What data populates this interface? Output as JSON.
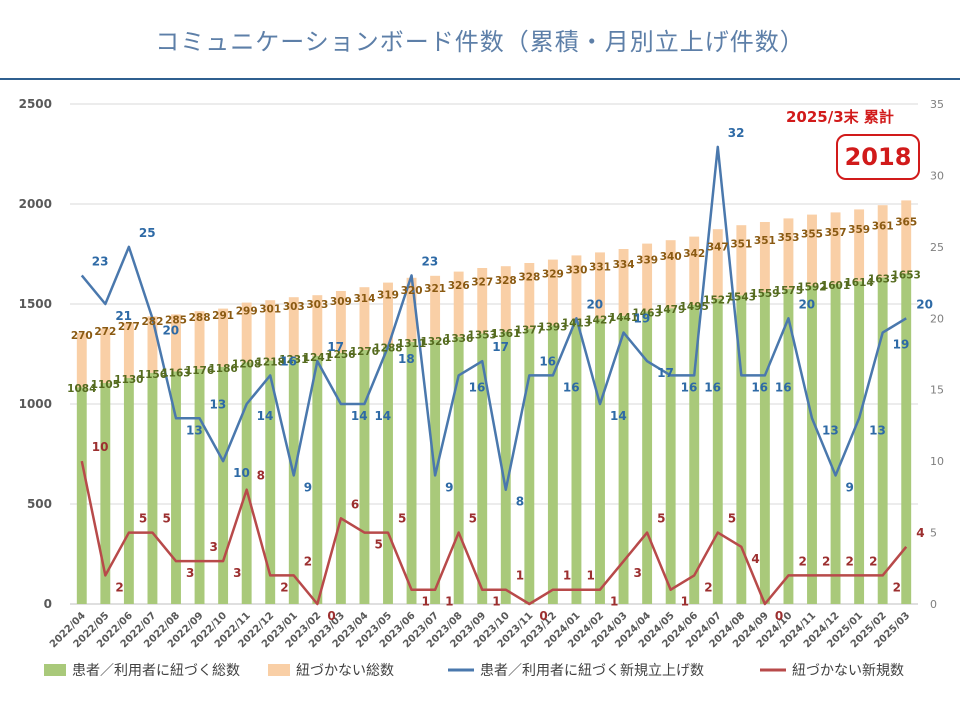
{
  "page": {
    "title": "コミュニケーションボード件数（累積・月別立上げ件数）",
    "total_label": "2025/3末 累計",
    "total_value": "2018"
  },
  "chart_data": {
    "type": "bar",
    "stacked": true,
    "categories": [
      "2022/04",
      "2022/05",
      "2022/06",
      "2022/07",
      "2022/08",
      "2022/09",
      "2022/10",
      "2022/11",
      "2022/12",
      "2023/01",
      "2023/02",
      "2023/03",
      "2023/04",
      "2023/05",
      "2023/06",
      "2023/07",
      "2023/08",
      "2023/09",
      "2023/10",
      "2023/11",
      "2023/12",
      "2024/01",
      "2024/02",
      "2024/03",
      "2024/04",
      "2024/05",
      "2024/06",
      "2024/07",
      "2024/08",
      "2024/09",
      "2024/10",
      "2024/11",
      "2024/12",
      "2025/01",
      "2025/02",
      "2025/03"
    ],
    "left_axis": {
      "min": 0,
      "max": 2500,
      "step": 500,
      "ticks": [
        "0",
        "500",
        "1000",
        "1500",
        "2000",
        "2500"
      ]
    },
    "right_axis": {
      "min": 0,
      "max": 35,
      "step": 5,
      "ticks": [
        "0",
        "5",
        "10",
        "15",
        "20",
        "25",
        "30",
        "35"
      ]
    },
    "grid": true,
    "legend_position": "bottom",
    "bar_series": [
      {
        "name": "患者／利用者に紐づく総数",
        "color": "#a9c97a",
        "label_color": "#556b1f",
        "values": [
          1084,
          1105,
          1130,
          1156,
          1163,
          1176,
          1186,
          1208,
          1218,
          1231,
          1241,
          1256,
          1270,
          1288,
          1311,
          1320,
          1336,
          1353,
          1361,
          1377,
          1393,
          1413,
          1427,
          1441,
          1463,
          1479,
          1495,
          1527,
          1543,
          1559,
          1575,
          1592,
          1601,
          1614,
          1633,
          1653
        ]
      },
      {
        "name": "紐づかない総数",
        "color": "#f9cfa6",
        "label_color": "#8a5a12",
        "values": [
          270,
          272,
          277,
          282,
          285,
          288,
          291,
          299,
          301,
          303,
          303,
          309,
          314,
          319,
          320,
          321,
          326,
          327,
          328,
          328,
          329,
          330,
          331,
          334,
          339,
          340,
          342,
          347,
          351,
          351,
          353,
          355,
          357,
          359,
          361,
          365
        ]
      }
    ],
    "line_series": [
      {
        "name": "患者／利用者に紐づく新規立上げ数",
        "color": "#4a78ad",
        "label_color": "#2e6aa6",
        "axis": "right",
        "values": [
          23,
          21,
          25,
          20,
          13,
          13,
          10,
          14,
          16,
          9,
          17,
          14,
          14,
          18,
          23,
          9,
          16,
          17,
          8,
          16,
          16,
          20,
          14,
          19,
          17,
          16,
          16,
          32,
          16,
          16,
          20,
          13,
          9,
          13,
          19,
          20
        ]
      },
      {
        "name": "紐づかない新規数",
        "color": "#b84a4a",
        "label_color": "#9c2f2f",
        "axis": "right",
        "values": [
          10,
          2,
          5,
          5,
          3,
          3,
          3,
          8,
          2,
          2,
          0,
          6,
          5,
          5,
          1,
          1,
          5,
          1,
          1,
          0,
          1,
          1,
          1,
          3,
          5,
          1,
          2,
          5,
          4,
          0,
          2,
          2,
          2,
          2,
          2,
          4
        ]
      }
    ]
  }
}
